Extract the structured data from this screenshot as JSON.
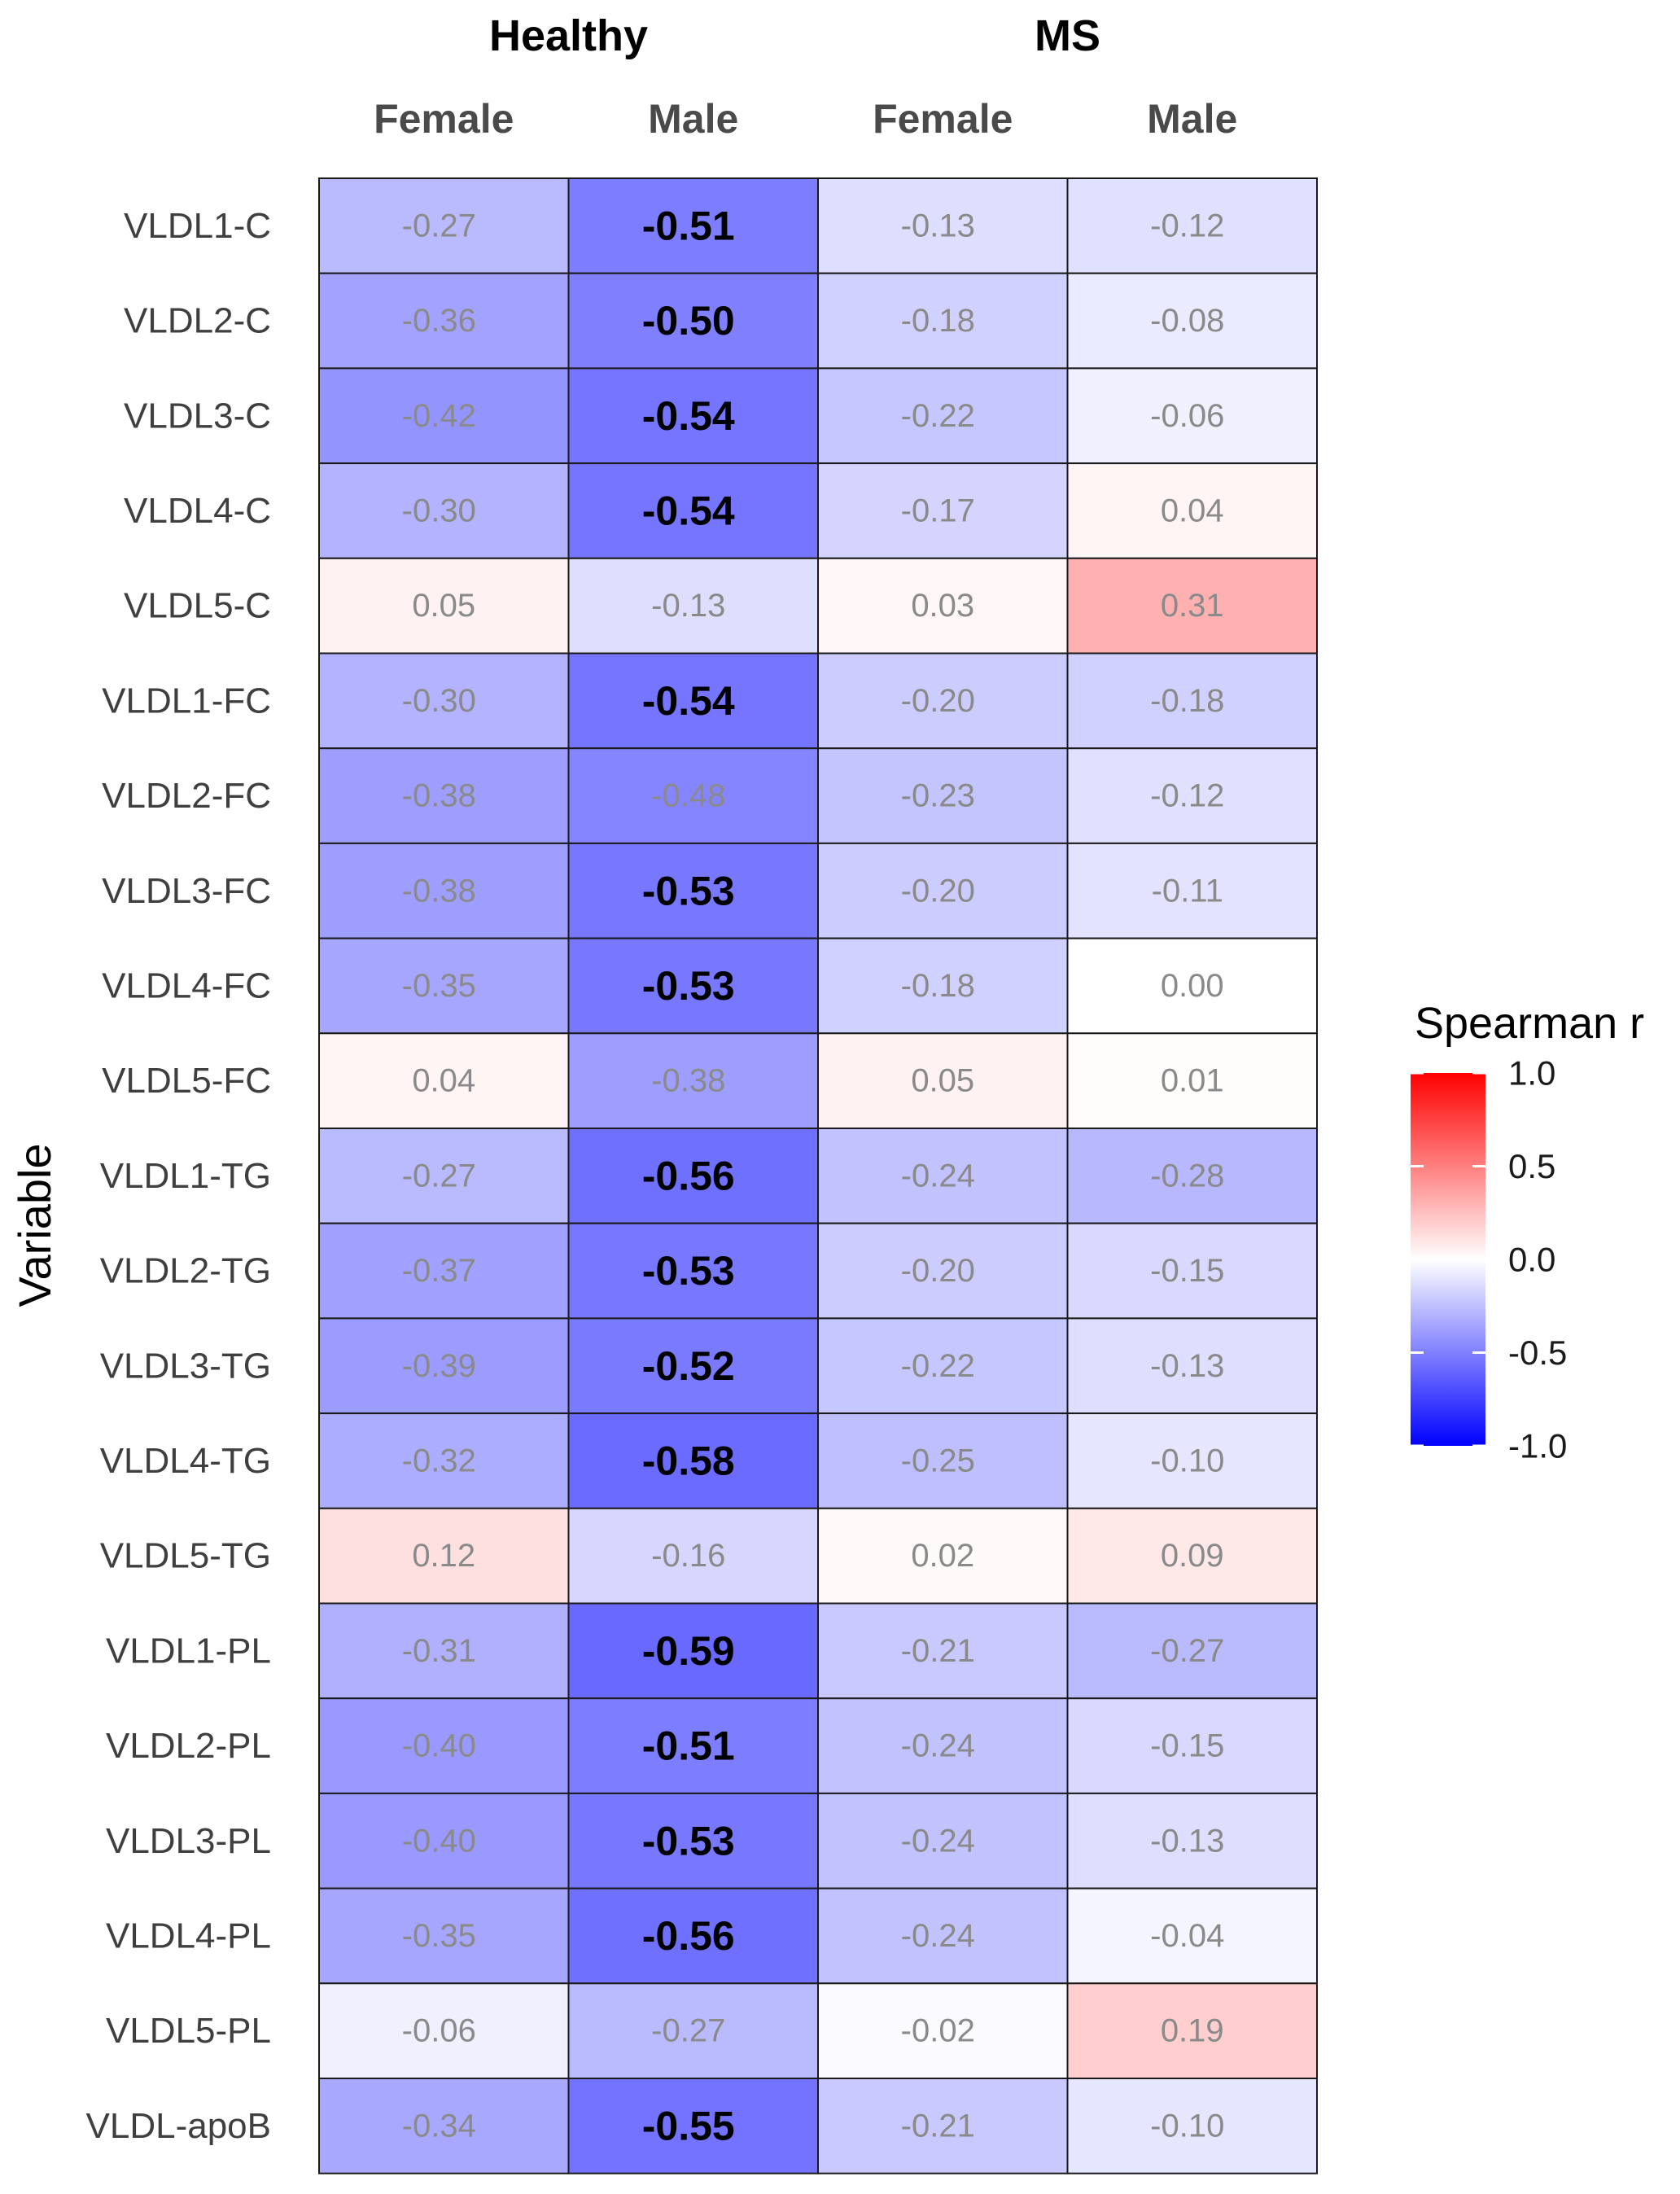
{
  "chart_data": {
    "type": "heatmap",
    "ylabel": "Variable",
    "groups": [
      {
        "name": "Healthy",
        "columns": [
          "Female",
          "Male"
        ]
      },
      {
        "name": "MS",
        "columns": [
          "Female",
          "Male"
        ]
      }
    ],
    "rows": [
      "VLDL1-C",
      "VLDL2-C",
      "VLDL3-C",
      "VLDL4-C",
      "VLDL5-C",
      "VLDL1-FC",
      "VLDL2-FC",
      "VLDL3-FC",
      "VLDL4-FC",
      "VLDL5-FC",
      "VLDL1-TG",
      "VLDL2-TG",
      "VLDL3-TG",
      "VLDL4-TG",
      "VLDL5-TG",
      "VLDL1-PL",
      "VLDL2-PL",
      "VLDL3-PL",
      "VLDL4-PL",
      "VLDL5-PL",
      "VLDL-apoB"
    ],
    "values": [
      [
        -0.27,
        -0.51,
        -0.13,
        -0.12
      ],
      [
        -0.36,
        -0.5,
        -0.18,
        -0.08
      ],
      [
        -0.42,
        -0.54,
        -0.22,
        -0.06
      ],
      [
        -0.3,
        -0.54,
        -0.17,
        0.04
      ],
      [
        0.05,
        -0.13,
        0.03,
        0.31
      ],
      [
        -0.3,
        -0.54,
        -0.2,
        -0.18
      ],
      [
        -0.38,
        -0.48,
        -0.23,
        -0.12
      ],
      [
        -0.38,
        -0.53,
        -0.2,
        -0.11
      ],
      [
        -0.35,
        -0.53,
        -0.18,
        0.0
      ],
      [
        0.04,
        -0.38,
        0.05,
        0.01
      ],
      [
        -0.27,
        -0.56,
        -0.24,
        -0.28
      ],
      [
        -0.37,
        -0.53,
        -0.2,
        -0.15
      ],
      [
        -0.39,
        -0.52,
        -0.22,
        -0.13
      ],
      [
        -0.32,
        -0.58,
        -0.25,
        -0.1
      ],
      [
        0.12,
        -0.16,
        0.02,
        0.09
      ],
      [
        -0.31,
        -0.59,
        -0.21,
        -0.27
      ],
      [
        -0.4,
        -0.51,
        -0.24,
        -0.15
      ],
      [
        -0.4,
        -0.53,
        -0.24,
        -0.13
      ],
      [
        -0.35,
        -0.56,
        -0.24,
        -0.04
      ],
      [
        -0.06,
        -0.27,
        -0.02,
        0.19
      ],
      [
        -0.34,
        -0.55,
        -0.21,
        -0.1
      ]
    ],
    "labels": [
      [
        "-0.27",
        "-0.51",
        "-0.13",
        "-0.12"
      ],
      [
        "-0.36",
        "-0.50",
        "-0.18",
        "-0.08"
      ],
      [
        "-0.42",
        "-0.54",
        "-0.22",
        "-0.06"
      ],
      [
        "-0.30",
        "-0.54",
        "-0.17",
        "0.04"
      ],
      [
        "0.05",
        "-0.13",
        "0.03",
        "0.31"
      ],
      [
        "-0.30",
        "-0.54",
        "-0.20",
        "-0.18"
      ],
      [
        "-0.38",
        "-0.48",
        "-0.23",
        "-0.12"
      ],
      [
        "-0.38",
        "-0.53",
        "-0.20",
        "-0.11"
      ],
      [
        "-0.35",
        "-0.53",
        "-0.18",
        "0.00"
      ],
      [
        "0.04",
        "-0.38",
        "0.05",
        "0.01"
      ],
      [
        "-0.27",
        "-0.56",
        "-0.24",
        "-0.28"
      ],
      [
        "-0.37",
        "-0.53",
        "-0.20",
        "-0.15"
      ],
      [
        "-0.39",
        "-0.52",
        "-0.22",
        "-0.13"
      ],
      [
        "-0.32",
        "-0.58",
        "-0.25",
        "-0.10"
      ],
      [
        "0.12",
        "-0.16",
        "0.02",
        "0.09"
      ],
      [
        "-0.31",
        "-0.59",
        "-0.21",
        "-0.27"
      ],
      [
        "-0.40",
        "-0.51",
        "-0.24",
        "-0.15"
      ],
      [
        "-0.40",
        "-0.53",
        "-0.24",
        "-0.13"
      ],
      [
        "-0.35",
        "-0.56",
        "-0.24",
        "-0.04"
      ],
      [
        "-0.06",
        "-0.27",
        "-0.02",
        "0.19"
      ],
      [
        "-0.34",
        "-0.55",
        "-0.21",
        "-0.10"
      ]
    ],
    "bold_cells": [
      [
        false,
        true,
        false,
        false
      ],
      [
        false,
        true,
        false,
        false
      ],
      [
        false,
        true,
        false,
        false
      ],
      [
        false,
        true,
        false,
        false
      ],
      [
        false,
        false,
        false,
        false
      ],
      [
        false,
        true,
        false,
        false
      ],
      [
        false,
        false,
        false,
        false
      ],
      [
        false,
        true,
        false,
        false
      ],
      [
        false,
        true,
        false,
        false
      ],
      [
        false,
        false,
        false,
        false
      ],
      [
        false,
        true,
        false,
        false
      ],
      [
        false,
        true,
        false,
        false
      ],
      [
        false,
        true,
        false,
        false
      ],
      [
        false,
        true,
        false,
        false
      ],
      [
        false,
        false,
        false,
        false
      ],
      [
        false,
        true,
        false,
        false
      ],
      [
        false,
        true,
        false,
        false
      ],
      [
        false,
        true,
        false,
        false
      ],
      [
        false,
        true,
        false,
        false
      ],
      [
        false,
        false,
        false,
        false
      ],
      [
        false,
        true,
        false,
        false
      ]
    ],
    "colorbar": {
      "title": "Spearman r",
      "range": [
        -1.0,
        1.0
      ],
      "ticks": [
        1.0,
        0.5,
        0.0,
        -0.5,
        -1.0
      ],
      "tick_labels": [
        "1.0",
        "0.5",
        "0.0",
        "-0.5",
        "-1.0"
      ],
      "low_color": "#0000ff",
      "mid_color": "#ffffff",
      "high_color": "#ff0000",
      "legend_position": "right"
    }
  },
  "colors": {
    "sig_text": "#000000",
    "nonsig_text": "#8a8a8a",
    "grid_line": "#1a1a1a"
  }
}
